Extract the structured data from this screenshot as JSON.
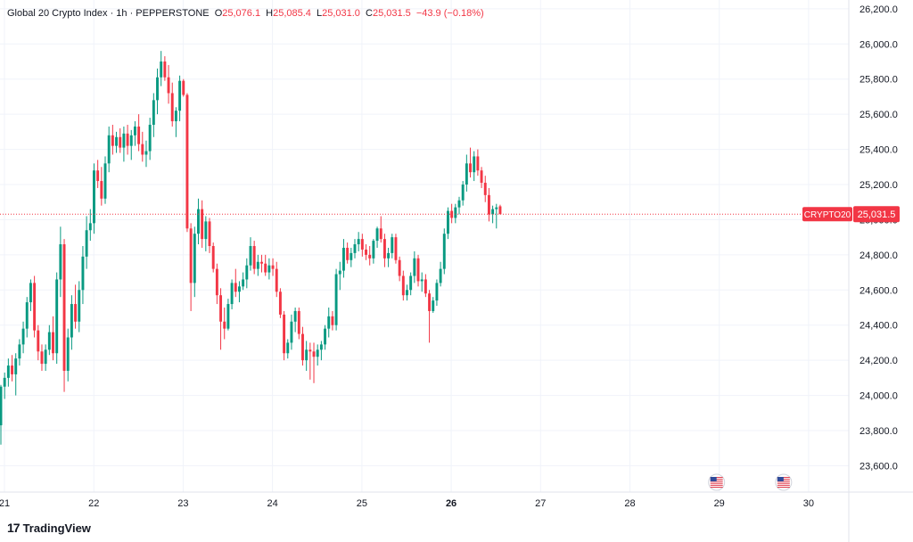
{
  "header": {
    "symbol": "Global 20 Crypto Index · 1h · PEPPERSTONE",
    "o_label": "O",
    "o_value": "25,076.1",
    "h_label": "H",
    "h_value": "25,085.4",
    "l_label": "L",
    "l_value": "25,031.0",
    "c_label": "C",
    "c_value": "25,031.5",
    "change": "−43.9 (−0.18%)"
  },
  "price_tag": {
    "symbol": "CRYPTO20",
    "price": "25,031.5"
  },
  "brand": {
    "logo": "17",
    "name": "TradingView"
  },
  "colors": {
    "up": "#089981",
    "down": "#f23645",
    "grid": "#f0f3fa",
    "axis_text": "#131722"
  },
  "chart_data": {
    "type": "candlestick",
    "title": "Global 20 Crypto Index · 1h · PEPPERSTONE",
    "ylim": [
      23450,
      26250
    ],
    "xlim": [
      20.95,
      30.45
    ],
    "y_ticks": [
      {
        "v": 26200,
        "label": "26,200.0"
      },
      {
        "v": 26000,
        "label": "26,000.0"
      },
      {
        "v": 25800,
        "label": "25,800.0"
      },
      {
        "v": 25600,
        "label": "25,600.0"
      },
      {
        "v": 25400,
        "label": "25,400.0"
      },
      {
        "v": 25200,
        "label": "25,200.0"
      },
      {
        "v": 25000,
        "label": "25,000.0"
      },
      {
        "v": 24800,
        "label": "24,800.0"
      },
      {
        "v": 24600,
        "label": "24,600.0"
      },
      {
        "v": 24400,
        "label": "24,400.0"
      },
      {
        "v": 24200,
        "label": "24,200.0"
      },
      {
        "v": 24000,
        "label": "24,000.0"
      },
      {
        "v": 23800,
        "label": "23,800.0"
      },
      {
        "v": 23600,
        "label": "23,600.0"
      }
    ],
    "x_ticks": [
      {
        "v": 21,
        "label": "21",
        "bold": false
      },
      {
        "v": 22,
        "label": "22",
        "bold": false
      },
      {
        "v": 23,
        "label": "23",
        "bold": false
      },
      {
        "v": 24,
        "label": "24",
        "bold": false
      },
      {
        "v": 25,
        "label": "25",
        "bold": false
      },
      {
        "v": 26,
        "label": "26",
        "bold": true
      },
      {
        "v": 27,
        "label": "27",
        "bold": false
      },
      {
        "v": 28,
        "label": "28",
        "bold": false
      },
      {
        "v": 29,
        "label": "29",
        "bold": false
      },
      {
        "v": 30,
        "label": "30",
        "bold": false
      }
    ],
    "last_price": 25031.5,
    "events": [
      {
        "x": 28.97,
        "icon": "us-flag"
      },
      {
        "x": 29.72,
        "icon": "us-flag"
      }
    ],
    "candles_start": 20.96,
    "candle_step": 0.0417,
    "candles": [
      [
        23830,
        24060,
        23720,
        24050
      ],
      [
        24050,
        24130,
        23980,
        24100
      ],
      [
        24100,
        24210,
        24050,
        24170
      ],
      [
        24170,
        24230,
        24080,
        24120
      ],
      [
        24120,
        24240,
        24000,
        24210
      ],
      [
        24210,
        24320,
        24170,
        24290
      ],
      [
        24290,
        24420,
        24240,
        24380
      ],
      [
        24380,
        24560,
        24330,
        24530
      ],
      [
        24530,
        24660,
        24480,
        24640
      ],
      [
        24640,
        24680,
        24330,
        24370
      ],
      [
        24370,
        24400,
        24200,
        24250
      ],
      [
        24250,
        24290,
        24140,
        24180
      ],
      [
        24180,
        24290,
        24140,
        24260
      ],
      [
        24260,
        24400,
        24230,
        24360
      ],
      [
        24360,
        24450,
        24200,
        24240
      ],
      [
        24240,
        24700,
        24180,
        24660
      ],
      [
        24660,
        24960,
        24560,
        24860
      ],
      [
        24860,
        24890,
        24020,
        24140
      ],
      [
        24140,
        24380,
        24080,
        24330
      ],
      [
        24330,
        24570,
        24260,
        24520
      ],
      [
        24520,
        24630,
        24380,
        24420
      ],
      [
        24420,
        24650,
        24360,
        24600
      ],
      [
        24600,
        24850,
        24520,
        24790
      ],
      [
        24790,
        25020,
        24720,
        24940
      ],
      [
        24940,
        25060,
        24880,
        24980
      ],
      [
        24980,
        25320,
        24920,
        25280
      ],
      [
        25280,
        25340,
        25180,
        25220
      ],
      [
        25220,
        25300,
        25080,
        25120
      ],
      [
        25120,
        25360,
        25090,
        25320
      ],
      [
        25320,
        25530,
        25270,
        25480
      ],
      [
        25480,
        25540,
        25370,
        25420
      ],
      [
        25420,
        25500,
        25380,
        25470
      ],
      [
        25470,
        25520,
        25380,
        25410
      ],
      [
        25410,
        25530,
        25330,
        25490
      ],
      [
        25490,
        25540,
        25370,
        25420
      ],
      [
        25420,
        25510,
        25340,
        25480
      ],
      [
        25480,
        25560,
        25420,
        25530
      ],
      [
        25530,
        25600,
        25390,
        25430
      ],
      [
        25430,
        25500,
        25330,
        25370
      ],
      [
        25370,
        25450,
        25300,
        25390
      ],
      [
        25390,
        25580,
        25340,
        25540
      ],
      [
        25540,
        25720,
        25470,
        25680
      ],
      [
        25680,
        25860,
        25600,
        25810
      ],
      [
        25810,
        25960,
        25760,
        25900
      ],
      [
        25900,
        25930,
        25790,
        25810
      ],
      [
        25810,
        25880,
        25660,
        25720
      ],
      [
        25720,
        25780,
        25530,
        25560
      ],
      [
        25560,
        25640,
        25470,
        25620
      ],
      [
        25620,
        25820,
        25560,
        25790
      ],
      [
        25790,
        25800,
        25700,
        25710
      ],
      [
        25710,
        25720,
        24930,
        24950
      ],
      [
        24950,
        24980,
        24480,
        24640
      ],
      [
        24640,
        24960,
        24560,
        24920
      ],
      [
        24920,
        25120,
        24860,
        25060
      ],
      [
        25060,
        25110,
        24840,
        24890
      ],
      [
        24890,
        25020,
        24820,
        24990
      ],
      [
        24990,
        25010,
        24810,
        24850
      ],
      [
        24850,
        24870,
        24700,
        24720
      ],
      [
        24720,
        24750,
        24520,
        24570
      ],
      [
        24570,
        24610,
        24260,
        24420
      ],
      [
        24420,
        24500,
        24320,
        24380
      ],
      [
        24380,
        24550,
        24370,
        24520
      ],
      [
        24520,
        24660,
        24490,
        24640
      ],
      [
        24640,
        24720,
        24560,
        24590
      ],
      [
        24590,
        24650,
        24530,
        24620
      ],
      [
        24620,
        24700,
        24600,
        24660
      ],
      [
        24660,
        24780,
        24610,
        24740
      ],
      [
        24740,
        24900,
        24710,
        24850
      ],
      [
        24850,
        24880,
        24690,
        24720
      ],
      [
        24720,
        24800,
        24680,
        24760
      ],
      [
        24760,
        24800,
        24700,
        24750
      ],
      [
        24750,
        24800,
        24680,
        24700
      ],
      [
        24700,
        24780,
        24660,
        24740
      ],
      [
        24740,
        24780,
        24680,
        24720
      ],
      [
        24720,
        24760,
        24560,
        24590
      ],
      [
        24590,
        24610,
        24440,
        24460
      ],
      [
        24460,
        24480,
        24200,
        24240
      ],
      [
        24240,
        24320,
        24210,
        24300
      ],
      [
        24300,
        24460,
        24260,
        24420
      ],
      [
        24420,
        24500,
        24360,
        24480
      ],
      [
        24480,
        24500,
        24320,
        24350
      ],
      [
        24350,
        24390,
        24170,
        24200
      ],
      [
        24200,
        24310,
        24140,
        24260
      ],
      [
        24260,
        24300,
        24090,
        24250
      ],
      [
        24250,
        24300,
        24070,
        24220
      ],
      [
        24220,
        24290,
        24170,
        24260
      ],
      [
        24260,
        24310,
        24200,
        24290
      ],
      [
        24290,
        24400,
        24260,
        24380
      ],
      [
        24380,
        24500,
        24330,
        24450
      ],
      [
        24450,
        24480,
        24370,
        24400
      ],
      [
        24400,
        24720,
        24370,
        24690
      ],
      [
        24690,
        24760,
        24600,
        24710
      ],
      [
        24710,
        24890,
        24670,
        24840
      ],
      [
        24840,
        24870,
        24750,
        24770
      ],
      [
        24770,
        24840,
        24730,
        24810
      ],
      [
        24810,
        24890,
        24780,
        24860
      ],
      [
        24860,
        24930,
        24820,
        24890
      ],
      [
        24890,
        24920,
        24790,
        24830
      ],
      [
        24830,
        24860,
        24770,
        24800
      ],
      [
        24800,
        24850,
        24740,
        24780
      ],
      [
        24780,
        24890,
        24750,
        24880
      ],
      [
        24880,
        24960,
        24840,
        24950
      ],
      [
        24950,
        25020,
        24870,
        24890
      ],
      [
        24890,
        24920,
        24730,
        24780
      ],
      [
        24780,
        24840,
        24730,
        24810
      ],
      [
        24810,
        24920,
        24780,
        24900
      ],
      [
        24900,
        24920,
        24750,
        24770
      ],
      [
        24770,
        24790,
        24650,
        24680
      ],
      [
        24680,
        24710,
        24540,
        24570
      ],
      [
        24570,
        24630,
        24540,
        24600
      ],
      [
        24600,
        24700,
        24570,
        24680
      ],
      [
        24680,
        24820,
        24640,
        24780
      ],
      [
        24780,
        24800,
        24620,
        24650
      ],
      [
        24650,
        24700,
        24590,
        24660
      ],
      [
        24660,
        24690,
        24560,
        24580
      ],
      [
        24580,
        24600,
        24300,
        24480
      ],
      [
        24480,
        24560,
        24470,
        24540
      ],
      [
        24540,
        24660,
        24510,
        24640
      ],
      [
        24640,
        24760,
        24620,
        24720
      ],
      [
        24720,
        24950,
        24690,
        24920
      ],
      [
        24920,
        25070,
        24890,
        25050
      ],
      [
        25050,
        25090,
        24980,
        25010
      ],
      [
        25010,
        25090,
        24980,
        25070
      ],
      [
        25070,
        25130,
        25030,
        25110
      ],
      [
        25110,
        25220,
        25080,
        25200
      ],
      [
        25200,
        25370,
        25160,
        25320
      ],
      [
        25320,
        25410,
        25240,
        25270
      ],
      [
        25270,
        25390,
        25220,
        25360
      ],
      [
        25360,
        25400,
        25250,
        25280
      ],
      [
        25280,
        25300,
        25180,
        25210
      ],
      [
        25210,
        25250,
        25100,
        25140
      ],
      [
        25140,
        25180,
        24990,
        25030
      ],
      [
        25030,
        25080,
        24980,
        25060
      ],
      [
        25060,
        25090,
        24950,
        25070
      ],
      [
        25076,
        25085,
        25031,
        25031
      ]
    ]
  }
}
